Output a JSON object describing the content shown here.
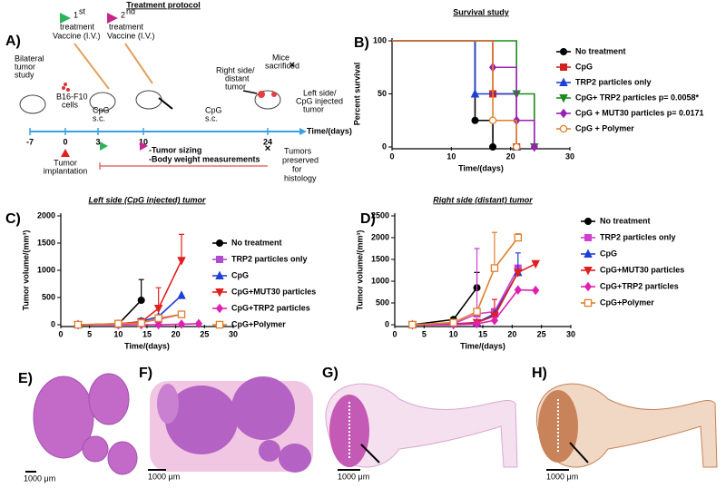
{
  "protocol": {
    "panel_label": "A)",
    "title": "Treatment protocol",
    "vaccine1": {
      "number": "1",
      "suffix": "st",
      "lines": [
        "treatment",
        "Vaccine (I.V.)"
      ]
    },
    "vaccine2": {
      "number": "2",
      "suffix": "nd",
      "lines": [
        "treatment",
        "Vaccine (I.V.)"
      ]
    },
    "bilateral": [
      "Bilateral",
      "tumor",
      "study"
    ],
    "cells": [
      "B16-F10",
      "cells"
    ],
    "cpg1": [
      "CpG",
      "s.c."
    ],
    "cpg2": [
      "CpG",
      "s.c."
    ],
    "right_side": [
      "Right side/",
      "distant",
      "tumor"
    ],
    "sacrificed": [
      "Mice",
      "sacrificed"
    ],
    "left_side": [
      "Left side/",
      "CpG injected",
      "tumor"
    ],
    "time_label": "Time/(days)",
    "timeline_ticks": [
      -7,
      0,
      3,
      10,
      24
    ],
    "implantation": [
      "Tumor",
      "implantation"
    ],
    "measurements": [
      "-Tumor sizing",
      "-Body weight measurements"
    ],
    "histology": [
      "Tumors",
      "preserved",
      "for",
      "histology"
    ]
  },
  "chart_data": [
    {
      "type": "step",
      "panel_label": "B)",
      "title": "Survival study",
      "xlabel": "Time/(days)",
      "ylabel": "Percent survival",
      "xlim": [
        0,
        30
      ],
      "xticks": [
        0,
        10,
        20,
        30
      ],
      "ylim": [
        0,
        100
      ],
      "yticks": [
        0,
        50,
        100
      ],
      "legend": "right",
      "series": [
        {
          "name": "No treatment",
          "color": "#000000",
          "marker": "circle",
          "x": [
            0,
            14,
            17
          ],
          "values": [
            100,
            25,
            0
          ]
        },
        {
          "name": "CpG",
          "color": "#d62020",
          "marker": "square",
          "x": [
            0,
            17,
            21
          ],
          "values": [
            100,
            50,
            0
          ]
        },
        {
          "name": "TRP2 particles only",
          "color": "#1f3fd6",
          "marker": "triangle",
          "x": [
            0,
            14,
            21
          ],
          "values": [
            100,
            50,
            0
          ]
        },
        {
          "name": "CpG+ TRP2 particles p= 0.0058*",
          "color": "#1f8a1f",
          "marker": "triangle-down",
          "x": [
            0,
            21,
            24
          ],
          "values": [
            100,
            50,
            0
          ]
        },
        {
          "name": "CpG + MUT30 particles p= 0.0171",
          "color": "#9b1fb5",
          "marker": "diamond",
          "x": [
            0,
            17,
            21,
            24
          ],
          "values": [
            100,
            75,
            25,
            0
          ]
        },
        {
          "name": "CpG + Polymer",
          "color": "#e0802a",
          "marker": "circle-open",
          "x": [
            0,
            17,
            21
          ],
          "values": [
            100,
            25,
            0
          ]
        }
      ]
    },
    {
      "type": "line",
      "panel_label": "C)",
      "title": "Left side (CpG injected) tumor",
      "xlabel": "Time/(days)",
      "ylabel": "Tumor volume/(mm³)",
      "xlim": [
        0,
        30
      ],
      "xticks": [
        0,
        5,
        10,
        15,
        20,
        25,
        30
      ],
      "ylim": [
        0,
        2000
      ],
      "yticks": [
        0,
        500,
        1000,
        1500,
        2000
      ],
      "legend": "right",
      "series": [
        {
          "name": "No treatment",
          "color": "#000000",
          "marker": "circle",
          "x": [
            3,
            10,
            14
          ],
          "values": [
            0,
            10,
            450
          ],
          "errors": [
            null,
            null,
            380
          ]
        },
        {
          "name": "TRP2 particles only",
          "color": "#b04ad0",
          "marker": "square",
          "x": [
            3,
            10,
            14,
            17,
            21
          ],
          "values": [
            0,
            10,
            40,
            100,
            190
          ],
          "errors": [
            null,
            null,
            null,
            null,
            null
          ]
        },
        {
          "name": "CpG",
          "color": "#1f3fd6",
          "marker": "triangle",
          "x": [
            3,
            10,
            14,
            17,
            21
          ],
          "values": [
            0,
            10,
            60,
            150,
            540
          ],
          "errors": [
            null,
            null,
            60,
            null,
            null
          ]
        },
        {
          "name": "CpG+MUT30 particles",
          "color": "#e02020",
          "marker": "triangle-down",
          "x": [
            3,
            10,
            14,
            17,
            21
          ],
          "values": [
            0,
            20,
            50,
            300,
            1180
          ],
          "errors": [
            null,
            null,
            null,
            380,
            480
          ]
        },
        {
          "name": "CpG+TRP2 particles",
          "color": "#e020b0",
          "marker": "diamond",
          "x": [
            3,
            10,
            14,
            17,
            21,
            24
          ],
          "values": [
            0,
            0,
            0,
            0,
            10,
            20
          ],
          "errors": [
            null,
            null,
            null,
            null,
            null,
            null
          ]
        },
        {
          "name": "CpG+Polymer",
          "color": "#e0802a",
          "marker": "square-open",
          "x": [
            3,
            10,
            14,
            17,
            21
          ],
          "values": [
            0,
            20,
            30,
            120,
            190
          ],
          "errors": [
            null,
            null,
            null,
            null,
            null
          ]
        }
      ]
    },
    {
      "type": "line",
      "panel_label": "D)",
      "title": "Right side (distant) tumor",
      "xlabel": "Time/(days)",
      "ylabel": "Tumor volume/(mm³)",
      "xlim": [
        0,
        30
      ],
      "xticks": [
        0,
        5,
        10,
        15,
        20,
        25,
        30
      ],
      "ylim": [
        0,
        2500
      ],
      "yticks": [
        0,
        500,
        1000,
        1500,
        2000,
        2500
      ],
      "legend": "right",
      "series": [
        {
          "name": "No treatment",
          "color": "#000000",
          "marker": "circle",
          "x": [
            3,
            10,
            14
          ],
          "values": [
            0,
            120,
            850
          ],
          "errors": [
            null,
            null,
            350
          ]
        },
        {
          "name": "TRP2 particles only",
          "color": "#d040d0",
          "marker": "square",
          "x": [
            3,
            10,
            14,
            17,
            21
          ],
          "values": [
            0,
            20,
            250,
            300,
            1300
          ],
          "errors": [
            null,
            null,
            1500,
            null,
            null
          ]
        },
        {
          "name": "CpG",
          "color": "#1f3fd6",
          "marker": "triangle",
          "x": [
            3,
            10,
            14,
            17,
            21
          ],
          "values": [
            0,
            20,
            50,
            250,
            1200
          ],
          "errors": [
            null,
            null,
            null,
            null,
            450
          ]
        },
        {
          "name": "CpG+MUT30 particles",
          "color": "#e02020",
          "marker": "triangle-down",
          "x": [
            3,
            10,
            14,
            17,
            21,
            24
          ],
          "values": [
            0,
            10,
            50,
            200,
            1200,
            1400
          ],
          "errors": [
            null,
            null,
            null,
            380,
            null,
            null
          ]
        },
        {
          "name": "CpG+TRP2 particles",
          "color": "#e020b0",
          "marker": "diamond",
          "x": [
            3,
            10,
            14,
            17,
            21,
            24
          ],
          "values": [
            0,
            0,
            20,
            100,
            800,
            790
          ],
          "errors": [
            null,
            null,
            null,
            null,
            null,
            null
          ]
        },
        {
          "name": "CpG+Polymer",
          "color": "#e0802a",
          "marker": "square-open",
          "x": [
            3,
            10,
            14,
            17,
            21
          ],
          "values": [
            0,
            50,
            300,
            1300,
            2000
          ],
          "errors": [
            null,
            null,
            null,
            820,
            90
          ]
        }
      ]
    }
  ],
  "histology": [
    {
      "label": "E)",
      "scale": "1000 μm"
    },
    {
      "label": "F)",
      "scale": "1000 μm"
    },
    {
      "label": "G)",
      "scale": "1000 μm"
    },
    {
      "label": "H)",
      "scale": "1000 μm"
    }
  ]
}
